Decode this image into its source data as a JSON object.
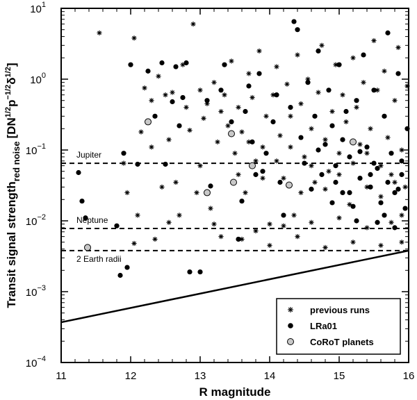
{
  "chart_data": {
    "type": "scatter",
    "xlabel": "R magnitude",
    "ylabel": {
      "main": "Transit signal strength",
      "sub": "red noise",
      "units": "[DN",
      "sup1": "1/2",
      "mid": "p",
      "sup2": "−1/2",
      "delta": "δ",
      "sup3": "1/2",
      "close": "]"
    },
    "xlim": [
      11,
      16
    ],
    "ylim": [
      0.0001,
      10
    ],
    "y_scale": "log",
    "x_ticks": [
      {
        "value": 11,
        "label": "11"
      },
      {
        "value": 12,
        "label": "12"
      },
      {
        "value": 13,
        "label": "13"
      },
      {
        "value": 14,
        "label": "14"
      },
      {
        "value": 15,
        "label": "15"
      },
      {
        "value": 16,
        "label": "16"
      }
    ],
    "y_ticks": [
      {
        "value": 0.0001,
        "base": "10",
        "exp": "−4"
      },
      {
        "value": 0.001,
        "base": "10",
        "exp": "−3"
      },
      {
        "value": 0.01,
        "base": "10",
        "exp": "−2"
      },
      {
        "value": 0.1,
        "base": "10",
        "exp": "−1"
      },
      {
        "value": 1,
        "base": "10",
        "exp": "0"
      },
      {
        "value": 10,
        "base": "10",
        "exp": "1"
      }
    ],
    "reference_lines": [
      {
        "label": "Jupiter",
        "y": 0.065
      },
      {
        "label": "Neptune",
        "y": 0.0078
      },
      {
        "label": "2 Earth radii",
        "y": 0.0038
      }
    ],
    "limit_line": {
      "x": [
        11,
        16
      ],
      "y": [
        0.00037,
        0.0038
      ]
    },
    "legend": {
      "position": "lower-right",
      "entries": [
        {
          "label": "previous runs",
          "series": "previous_runs"
        },
        {
          "label": "LRa01",
          "series": "lra01"
        },
        {
          "label": "CoRoT planets",
          "series": "corot_planets"
        }
      ]
    },
    "series": {
      "previous_runs": {
        "marker": "asterisk",
        "points": [
          [
            11.55,
            4.5
          ],
          [
            11.9,
            0.065
          ],
          [
            12.05,
            3.8
          ],
          [
            12.2,
            0.75
          ],
          [
            12.15,
            0.18
          ],
          [
            12.3,
            0.11
          ],
          [
            12.4,
            1.1
          ],
          [
            12.5,
            0.6
          ],
          [
            12.55,
            0.14
          ],
          [
            12.6,
            0.65
          ],
          [
            12.65,
            0.035
          ],
          [
            12.7,
            0.012
          ],
          [
            12.8,
            0.4
          ],
          [
            12.85,
            0.19
          ],
          [
            12.9,
            6.0
          ],
          [
            12.95,
            0.025
          ],
          [
            13.0,
            0.7
          ],
          [
            13.05,
            0.28
          ],
          [
            13.1,
            0.45
          ],
          [
            13.15,
            0.015
          ],
          [
            13.2,
            0.9
          ],
          [
            13.25,
            0.13
          ],
          [
            13.3,
            0.006
          ],
          [
            13.35,
            0.6
          ],
          [
            13.4,
            0.22
          ],
          [
            13.45,
            1.8
          ],
          [
            13.5,
            0.09
          ],
          [
            13.55,
            0.4
          ],
          [
            13.6,
            0.18
          ],
          [
            13.65,
            0.025
          ],
          [
            13.7,
            1.2
          ],
          [
            13.75,
            0.55
          ],
          [
            13.8,
            0.07
          ],
          [
            13.85,
            2.5
          ],
          [
            13.9,
            0.11
          ],
          [
            13.95,
            0.3
          ],
          [
            14.0,
            0.009
          ],
          [
            14.05,
            0.6
          ],
          [
            14.1,
            1.5
          ],
          [
            14.15,
            0.16
          ],
          [
            14.2,
            0.04
          ],
          [
            14.25,
            0.85
          ],
          [
            14.3,
            0.3
          ],
          [
            14.35,
            0.012
          ],
          [
            14.4,
            2.2
          ],
          [
            14.45,
            0.45
          ],
          [
            14.5,
            0.08
          ],
          [
            14.55,
            1.0
          ],
          [
            14.6,
            0.2
          ],
          [
            14.65,
            0.035
          ],
          [
            14.7,
            0.65
          ],
          [
            14.75,
            3.0
          ],
          [
            14.8,
            0.14
          ],
          [
            14.85,
            0.05
          ],
          [
            14.9,
            0.35
          ],
          [
            14.95,
            1.6
          ],
          [
            15.0,
            0.09
          ],
          [
            15.05,
            0.6
          ],
          [
            15.1,
            0.25
          ],
          [
            15.15,
            0.017
          ],
          [
            15.2,
            2.0
          ],
          [
            15.25,
            0.4
          ],
          [
            15.3,
            0.12
          ],
          [
            15.35,
            0.9
          ],
          [
            15.4,
            0.03
          ],
          [
            15.45,
            0.2
          ],
          [
            15.5,
            3.5
          ],
          [
            15.55,
            0.7
          ],
          [
            15.6,
            0.06
          ],
          [
            15.65,
            1.3
          ],
          [
            15.7,
            0.15
          ],
          [
            15.75,
            0.045
          ],
          [
            15.8,
            0.5
          ],
          [
            15.85,
            2.8
          ],
          [
            15.9,
            0.1
          ],
          [
            15.95,
            0.03
          ],
          [
            15.98,
            0.8
          ],
          [
            12.3,
            0.5
          ],
          [
            12.75,
            1.6
          ],
          [
            13.0,
            0.06
          ],
          [
            13.3,
            0.35
          ],
          [
            13.55,
            0.045
          ],
          [
            13.7,
            0.13
          ],
          [
            13.9,
            0.04
          ],
          [
            14.1,
            0.07
          ],
          [
            14.3,
            0.11
          ],
          [
            14.45,
            0.025
          ],
          [
            14.6,
            0.06
          ],
          [
            14.8,
            0.028
          ],
          [
            15.0,
            0.045
          ],
          [
            15.2,
            0.065
          ],
          [
            15.4,
            0.09
          ],
          [
            15.6,
            0.022
          ],
          [
            15.8,
            0.035
          ],
          [
            15.9,
            0.012
          ],
          [
            13.2,
            0.009
          ],
          [
            13.6,
            0.0055
          ],
          [
            14.0,
            0.0045
          ],
          [
            14.4,
            0.006
          ],
          [
            14.8,
            0.0042
          ],
          [
            15.2,
            0.005
          ],
          [
            15.6,
            0.0045
          ],
          [
            15.9,
            0.005
          ],
          [
            14.6,
            0.0095
          ],
          [
            15.0,
            0.011
          ],
          [
            15.4,
            0.008
          ],
          [
            15.75,
            0.0095
          ],
          [
            14.2,
            0.0085
          ],
          [
            13.8,
            0.0072
          ],
          [
            12.1,
            0.012
          ],
          [
            12.35,
            0.0055
          ],
          [
            12.55,
            0.0095
          ],
          [
            12.05,
            0.0048
          ],
          [
            11.95,
            0.025
          ],
          [
            12.45,
            0.03
          ]
        ]
      },
      "lra01": {
        "marker": "dot",
        "points": [
          [
            11.25,
            0.048
          ],
          [
            11.3,
            0.019
          ],
          [
            11.35,
            0.011
          ],
          [
            11.8,
            0.0085
          ],
          [
            11.85,
            0.0017
          ],
          [
            11.9,
            0.09
          ],
          [
            11.95,
            0.0022
          ],
          [
            12.0,
            1.6
          ],
          [
            12.1,
            0.063
          ],
          [
            12.25,
            1.3
          ],
          [
            12.35,
            0.3
          ],
          [
            12.45,
            1.7
          ],
          [
            12.5,
            0.063
          ],
          [
            12.6,
            0.48
          ],
          [
            12.65,
            1.5
          ],
          [
            12.7,
            0.22
          ],
          [
            12.75,
            0.55
          ],
          [
            12.8,
            1.7
          ],
          [
            12.85,
            0.0019
          ],
          [
            13.0,
            0.0019
          ],
          [
            13.1,
            0.5
          ],
          [
            13.15,
            0.031
          ],
          [
            13.3,
            0.7
          ],
          [
            13.35,
            1.6
          ],
          [
            13.45,
            0.25
          ],
          [
            13.55,
            0.0055
          ],
          [
            13.6,
            0.019
          ],
          [
            13.65,
            0.35
          ],
          [
            13.7,
            0.8
          ],
          [
            13.75,
            0.13
          ],
          [
            13.8,
            0.045
          ],
          [
            13.85,
            1.2
          ],
          [
            13.9,
            0.05
          ],
          [
            13.95,
            0.09
          ],
          [
            14.05,
            0.25
          ],
          [
            14.1,
            0.6
          ],
          [
            14.15,
            0.035
          ],
          [
            14.2,
            0.012
          ],
          [
            14.3,
            0.4
          ],
          [
            14.35,
            6.5
          ],
          [
            14.4,
            5.0
          ],
          [
            14.45,
            0.15
          ],
          [
            14.5,
            0.065
          ],
          [
            14.55,
            0.9
          ],
          [
            14.6,
            0.028
          ],
          [
            14.65,
            0.3
          ],
          [
            14.7,
            2.5
          ],
          [
            14.75,
            0.045
          ],
          [
            14.8,
            0.12
          ],
          [
            14.85,
            0.7
          ],
          [
            14.9,
            0.018
          ],
          [
            14.95,
            0.06
          ],
          [
            15.0,
            1.6
          ],
          [
            15.05,
            0.025
          ],
          [
            15.1,
            0.35
          ],
          [
            15.15,
            0.08
          ],
          [
            15.2,
            0.016
          ],
          [
            15.25,
            0.5
          ],
          [
            15.3,
            0.04
          ],
          [
            15.35,
            2.2
          ],
          [
            15.4,
            0.11
          ],
          [
            15.45,
            0.03
          ],
          [
            15.5,
            0.7
          ],
          [
            15.55,
            0.055
          ],
          [
            15.6,
            0.018
          ],
          [
            15.65,
            0.3
          ],
          [
            15.7,
            4.5
          ],
          [
            15.75,
            0.09
          ],
          [
            15.8,
            0.025
          ],
          [
            15.85,
            1.2
          ],
          [
            15.9,
            0.045
          ],
          [
            15.95,
            0.015
          ],
          [
            15.98,
            0.2
          ],
          [
            14.9,
            0.22
          ],
          [
            15.05,
            0.14
          ],
          [
            15.3,
            0.095
          ],
          [
            15.5,
            0.065
          ],
          [
            15.7,
            0.035
          ],
          [
            15.9,
            0.07
          ],
          [
            14.7,
            0.1
          ],
          [
            14.95,
            0.035
          ],
          [
            15.15,
            0.025
          ],
          [
            15.45,
            0.045
          ],
          [
            15.65,
            0.012
          ],
          [
            15.85,
            0.028
          ],
          [
            15.25,
            0.01
          ],
          [
            15.55,
            0.0095
          ],
          [
            15.8,
            0.008
          ]
        ]
      },
      "corot_planets": {
        "marker": "circle-gray",
        "points": [
          [
            11.38,
            0.0042
          ],
          [
            12.25,
            0.25
          ],
          [
            13.1,
            0.025
          ],
          [
            13.45,
            0.17
          ],
          [
            13.48,
            0.035
          ],
          [
            13.75,
            0.06
          ],
          [
            14.28,
            0.032
          ],
          [
            15.2,
            0.13
          ]
        ]
      }
    }
  }
}
